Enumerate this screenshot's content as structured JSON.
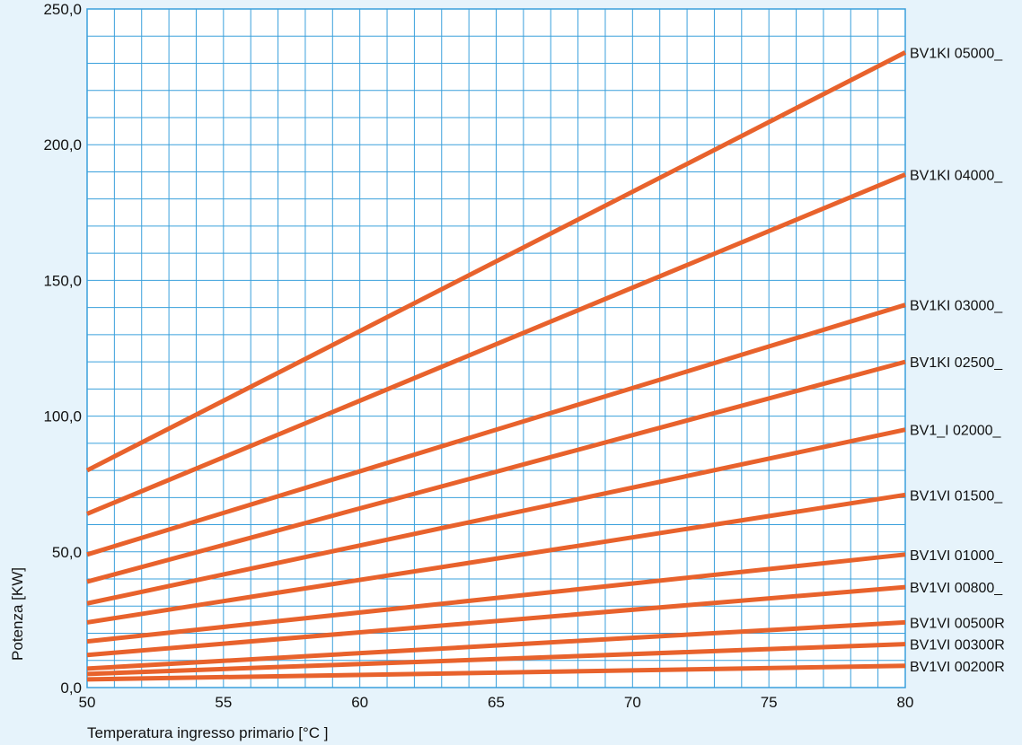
{
  "chart_data": {
    "type": "line",
    "title": "",
    "xlabel": "Temperatura ingresso primario [°C ]",
    "ylabel": "Potenza [KW]",
    "x": [
      50,
      80
    ],
    "xlim": [
      50,
      80
    ],
    "ylim": [
      0,
      250
    ],
    "x_ticks": [
      50,
      55,
      60,
      65,
      70,
      75,
      80
    ],
    "x_tick_labels": [
      "50",
      "55",
      "60",
      "65",
      "70",
      "75",
      "80"
    ],
    "y_ticks": [
      0,
      50,
      100,
      150,
      200,
      250
    ],
    "y_tick_labels": [
      "0,0",
      "50,0",
      "100,0",
      "150,0",
      "200,0",
      "250,0"
    ],
    "x_minor_step": 1,
    "y_minor_step": 10,
    "grid": true,
    "legend": "labels at right end of each line",
    "line_color": "#e8622c",
    "grid_color": "#3aa0dc",
    "background_color": "#ffffff",
    "page_color": "#e6f3fb",
    "series": [
      {
        "name": "BV1KI 05000_",
        "values": [
          80,
          234
        ]
      },
      {
        "name": "BV1KI 04000_",
        "values": [
          64,
          189
        ]
      },
      {
        "name": "BV1KI 03000_",
        "values": [
          49,
          141
        ]
      },
      {
        "name": "BV1KI 02500_",
        "values": [
          39,
          120
        ]
      },
      {
        "name": "BV1_I 02000_",
        "values": [
          31,
          95
        ]
      },
      {
        "name": "BV1VI 01500_",
        "values": [
          24,
          71
        ]
      },
      {
        "name": "BV1VI 01000_",
        "values": [
          17,
          49
        ]
      },
      {
        "name": "BV1VI 00800_",
        "values": [
          12,
          37
        ]
      },
      {
        "name": "BV1VI 00500R",
        "values": [
          7,
          24
        ]
      },
      {
        "name": "BV1VI 00300R",
        "values": [
          5,
          16
        ]
      },
      {
        "name": "BV1VI 00200R",
        "values": [
          3,
          8
        ]
      }
    ]
  }
}
